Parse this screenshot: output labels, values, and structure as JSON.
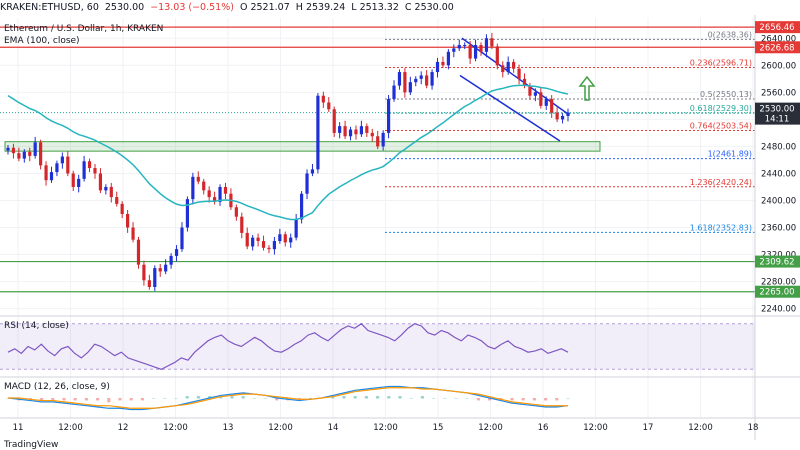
{
  "header": {
    "symbol": "KRAKEN:ETHUSD, 60",
    "last": "2530.00",
    "change": "−13.03 (−0.51%)",
    "open_label": "O",
    "open": "2521.07",
    "high_label": "H",
    "high": "2539.24",
    "low_label": "L",
    "low": "2513.32",
    "close_label": "C",
    "close": "2530.00"
  },
  "legend": {
    "title": "Ethereum / U.S. Dollar, 1h, KRAKEN",
    "ema": "EMA (100, close)"
  },
  "chart_data": [
    {
      "type": "candlestick",
      "title": "Ethereum / U.S. Dollar, 1h, KRAKEN",
      "xlabel": "",
      "ylabel": "",
      "ylim": [
        2235,
        2670
      ],
      "x_ticks": [
        "11",
        "12:00",
        "12",
        "12:00",
        "13",
        "12:00",
        "14",
        "12:00",
        "15",
        "12:00",
        "16",
        "12:00",
        "17",
        "12:00",
        "18"
      ],
      "y_ticks": [
        "2640.00",
        "2600.00",
        "2560.00",
        "2520.00",
        "2480.00",
        "2440.00",
        "2400.00",
        "2360.00",
        "2320.00",
        "2280.00",
        "2240.00"
      ],
      "candle_closes": [
        2478,
        2470,
        2462,
        2472,
        2466,
        2486,
        2452,
        2430,
        2442,
        2455,
        2465,
        2440,
        2420,
        2432,
        2458,
        2448,
        2440,
        2415,
        2420,
        2405,
        2395,
        2380,
        2360,
        2342,
        2305,
        2282,
        2272,
        2300,
        2295,
        2305,
        2318,
        2328,
        2360,
        2402,
        2435,
        2428,
        2415,
        2405,
        2398,
        2420,
        2410,
        2390,
        2376,
        2352,
        2332,
        2345,
        2340,
        2330,
        2328,
        2340,
        2350,
        2338,
        2345,
        2372,
        2410,
        2440,
        2446,
        2555,
        2545,
        2535,
        2500,
        2510,
        2495,
        2505,
        2498,
        2510,
        2500,
        2495,
        2480,
        2500,
        2550,
        2570,
        2590,
        2560,
        2575,
        2580,
        2585,
        2570,
        2590,
        2605,
        2600,
        2620,
        2625,
        2630,
        2630,
        2610,
        2630,
        2620,
        2640,
        2628,
        2600,
        2590,
        2605,
        2595,
        2580,
        2570,
        2555,
        2560,
        2540,
        2550,
        2530,
        2520,
        2525,
        2530
      ],
      "ema_label": "EMA (100, close)",
      "horizontal_levels": [
        {
          "label": "2656.46",
          "value": 2656.46,
          "color": "#e53935"
        },
        {
          "label": "2626.68",
          "value": 2626.68,
          "color": "#e53935"
        },
        {
          "label": "2309.62",
          "value": 2309.62,
          "color": "#43a047"
        },
        {
          "label": "2265.00",
          "value": 2265.0,
          "color": "#43a047"
        }
      ],
      "fib_levels": [
        {
          "ratio": "0",
          "label": "0(2638.36)",
          "value": 2638.36
        },
        {
          "ratio": "0.236",
          "label": "0.236(2596.71)",
          "value": 2596.71
        },
        {
          "ratio": "0.5",
          "label": "0.5(2550.13)",
          "value": 2550.13
        },
        {
          "ratio": "0.618",
          "label": "0.618(2529.30)",
          "value": 2529.3
        },
        {
          "ratio": "0.764",
          "label": "0.764(2503.54)",
          "value": 2503.54
        },
        {
          "ratio": "1",
          "label": "1(2461.89)",
          "value": 2461.89
        },
        {
          "ratio": "1.236",
          "label": "1.236(2420.24)",
          "value": 2420.24
        },
        {
          "ratio": "1.618",
          "label": "1.618(2352.83)",
          "value": 2352.83
        }
      ],
      "current_price": {
        "label": "2530.00",
        "countdown": "14:11",
        "value": 2530.0,
        "color": "#26a69a"
      }
    },
    {
      "type": "line",
      "title": "RSI (14, close)",
      "ylim": [
        25,
        75
      ],
      "y_ticks": [
        "60.00",
        "40.00"
      ],
      "values": [
        45,
        48,
        44,
        50,
        47,
        52,
        46,
        42,
        48,
        50,
        44,
        40,
        45,
        52,
        50,
        46,
        42,
        45,
        40,
        38,
        36,
        34,
        32,
        30,
        33,
        36,
        40,
        38,
        45,
        50,
        55,
        58,
        60,
        55,
        52,
        50,
        54,
        58,
        55,
        50,
        46,
        45,
        48,
        52,
        55,
        60,
        62,
        58,
        55,
        60,
        65,
        68,
        66,
        70,
        64,
        62,
        60,
        58,
        55,
        60,
        66,
        70,
        68,
        62,
        60,
        64,
        62,
        58,
        55,
        60,
        58,
        55,
        50,
        48,
        52,
        55,
        50,
        48,
        45,
        46,
        48,
        44,
        46,
        48,
        45
      ]
    },
    {
      "type": "line",
      "title": "MACD (12, 26, close, 9)",
      "ylim": [
        -14,
        14
      ],
      "y_ticks": [
        "0.00",
        "-10.00"
      ],
      "macd": [
        0,
        -1,
        -2,
        -3,
        -3,
        -4,
        -5,
        -6,
        -7,
        -8,
        -8,
        -9,
        -9,
        -8,
        -7,
        -6,
        -4,
        -2,
        0,
        2,
        3,
        4,
        3,
        2,
        0,
        -1,
        -2,
        -1,
        0,
        2,
        4,
        6,
        7,
        8,
        9,
        9,
        8,
        8,
        7,
        6,
        5,
        4,
        2,
        0,
        -2,
        -4,
        -5,
        -6,
        -7,
        -7,
        -6
      ],
      "signal": [
        0,
        0,
        -1,
        -2,
        -2,
        -3,
        -4,
        -5,
        -6,
        -6,
        -7,
        -8,
        -8,
        -8,
        -7,
        -6,
        -5,
        -3,
        -1,
        1,
        2,
        3,
        3,
        2,
        1,
        0,
        -1,
        -1,
        0,
        1,
        3,
        5,
        6,
        7,
        8,
        8,
        8,
        7,
        7,
        6,
        5,
        4,
        3,
        1,
        -1,
        -3,
        -4,
        -5,
        -6,
        -6,
        -6
      ]
    }
  ],
  "footer": "TradingView"
}
